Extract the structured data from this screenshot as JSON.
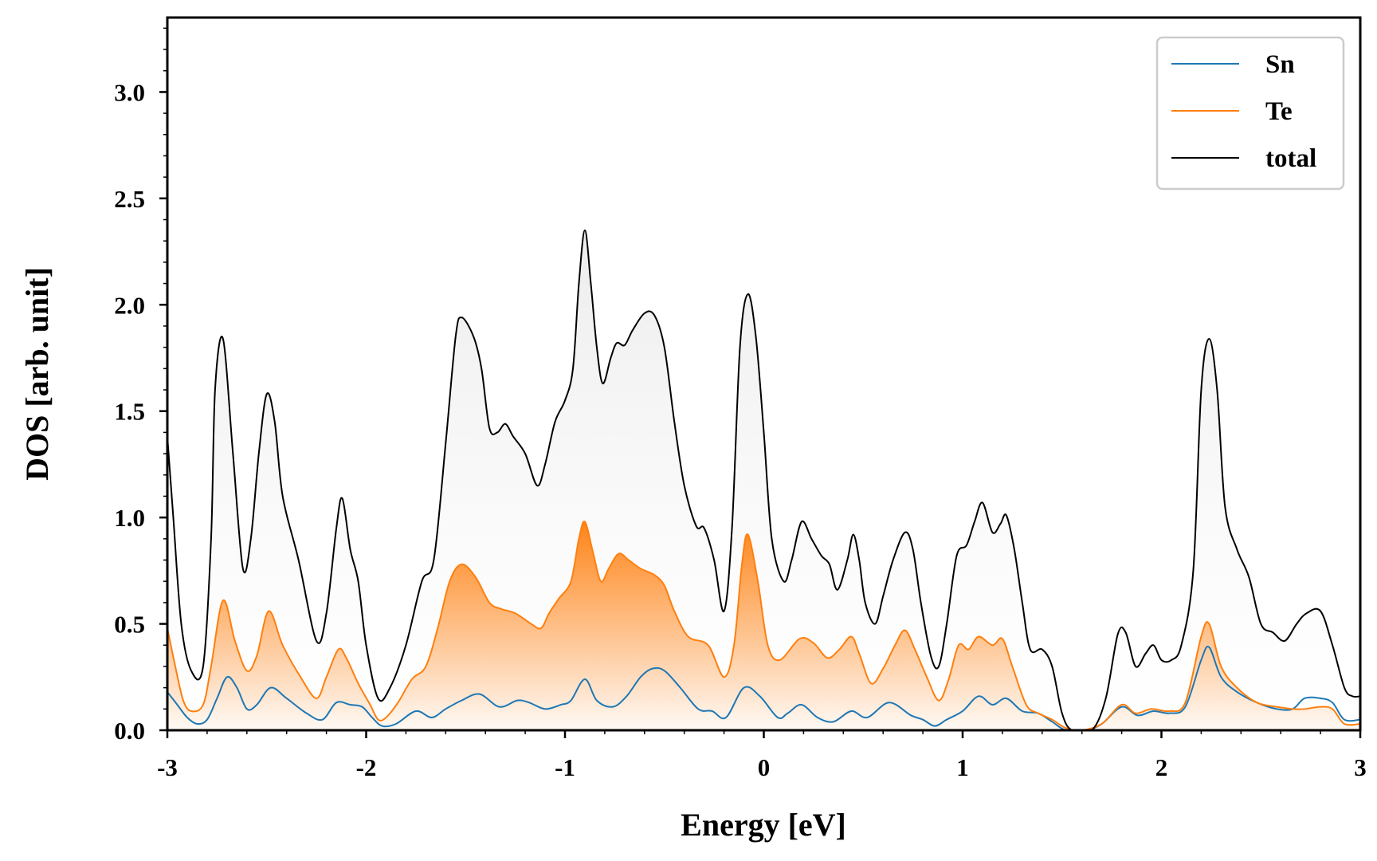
{
  "chart_data": {
    "type": "line",
    "title": "",
    "xlabel": "Energy [eV]",
    "ylabel": "DOS [arb. unit]",
    "xlim": [
      -3,
      3
    ],
    "ylim": [
      0,
      3.35
    ],
    "xticks": [
      -3,
      -2,
      -1,
      0,
      1,
      2,
      3
    ],
    "xtick_labels": [
      "-3",
      "-2",
      "-1",
      "0",
      "1",
      "2",
      "3"
    ],
    "yticks": [
      0,
      0.5,
      1,
      1.5,
      2,
      2.5,
      3
    ],
    "ytick_labels": [
      "0.0",
      "0.5",
      "1.0",
      "1.5",
      "2.0",
      "2.5",
      "3.0"
    ],
    "legend": {
      "position": "top-right"
    },
    "series": [
      {
        "name": "Sn",
        "color": "#1f77b4",
        "filled": false,
        "points": [
          [
            -3.0,
            0.18
          ],
          [
            -2.95,
            0.12
          ],
          [
            -2.9,
            0.06
          ],
          [
            -2.85,
            0.03
          ],
          [
            -2.8,
            0.05
          ],
          [
            -2.75,
            0.15
          ],
          [
            -2.7,
            0.25
          ],
          [
            -2.65,
            0.2
          ],
          [
            -2.6,
            0.1
          ],
          [
            -2.55,
            0.12
          ],
          [
            -2.48,
            0.2
          ],
          [
            -2.4,
            0.15
          ],
          [
            -2.3,
            0.08
          ],
          [
            -2.22,
            0.05
          ],
          [
            -2.15,
            0.13
          ],
          [
            -2.08,
            0.12
          ],
          [
            -2.02,
            0.11
          ],
          [
            -1.97,
            0.06
          ],
          [
            -1.92,
            0.02
          ],
          [
            -1.85,
            0.03
          ],
          [
            -1.75,
            0.09
          ],
          [
            -1.67,
            0.06
          ],
          [
            -1.6,
            0.1
          ],
          [
            -1.52,
            0.14
          ],
          [
            -1.43,
            0.17
          ],
          [
            -1.33,
            0.11
          ],
          [
            -1.24,
            0.14
          ],
          [
            -1.18,
            0.13
          ],
          [
            -1.1,
            0.1
          ],
          [
            -1.02,
            0.12
          ],
          [
            -0.97,
            0.14
          ],
          [
            -0.9,
            0.24
          ],
          [
            -0.84,
            0.14
          ],
          [
            -0.76,
            0.11
          ],
          [
            -0.69,
            0.16
          ],
          [
            -0.62,
            0.25
          ],
          [
            -0.56,
            0.29
          ],
          [
            -0.5,
            0.28
          ],
          [
            -0.42,
            0.2
          ],
          [
            -0.33,
            0.1
          ],
          [
            -0.26,
            0.09
          ],
          [
            -0.19,
            0.06
          ],
          [
            -0.1,
            0.2
          ],
          [
            -0.02,
            0.16
          ],
          [
            0.07,
            0.06
          ],
          [
            0.12,
            0.08
          ],
          [
            0.19,
            0.12
          ],
          [
            0.27,
            0.06
          ],
          [
            0.35,
            0.04
          ],
          [
            0.44,
            0.09
          ],
          [
            0.52,
            0.06
          ],
          [
            0.63,
            0.13
          ],
          [
            0.74,
            0.07
          ],
          [
            0.8,
            0.05
          ],
          [
            0.86,
            0.02
          ],
          [
            0.92,
            0.05
          ],
          [
            1.0,
            0.09
          ],
          [
            1.08,
            0.16
          ],
          [
            1.15,
            0.12
          ],
          [
            1.22,
            0.15
          ],
          [
            1.3,
            0.09
          ],
          [
            1.38,
            0.08
          ],
          [
            1.45,
            0.04
          ],
          [
            1.52,
            0.0
          ],
          [
            1.62,
            0.0
          ],
          [
            1.7,
            0.03
          ],
          [
            1.8,
            0.11
          ],
          [
            1.88,
            0.07
          ],
          [
            1.96,
            0.09
          ],
          [
            2.04,
            0.08
          ],
          [
            2.12,
            0.11
          ],
          [
            2.2,
            0.33
          ],
          [
            2.24,
            0.39
          ],
          [
            2.3,
            0.25
          ],
          [
            2.38,
            0.18
          ],
          [
            2.48,
            0.13
          ],
          [
            2.58,
            0.1
          ],
          [
            2.66,
            0.1
          ],
          [
            2.72,
            0.15
          ],
          [
            2.8,
            0.15
          ],
          [
            2.86,
            0.13
          ],
          [
            2.92,
            0.05
          ],
          [
            3.0,
            0.05
          ]
        ]
      },
      {
        "name": "Te",
        "color": "#ff7f0e",
        "filled": true,
        "points": [
          [
            -3.0,
            0.48
          ],
          [
            -2.96,
            0.3
          ],
          [
            -2.92,
            0.14
          ],
          [
            -2.88,
            0.09
          ],
          [
            -2.82,
            0.12
          ],
          [
            -2.78,
            0.3
          ],
          [
            -2.72,
            0.61
          ],
          [
            -2.66,
            0.42
          ],
          [
            -2.6,
            0.28
          ],
          [
            -2.55,
            0.35
          ],
          [
            -2.49,
            0.56
          ],
          [
            -2.42,
            0.4
          ],
          [
            -2.33,
            0.25
          ],
          [
            -2.25,
            0.15
          ],
          [
            -2.2,
            0.25
          ],
          [
            -2.14,
            0.38
          ],
          [
            -2.1,
            0.34
          ],
          [
            -2.04,
            0.22
          ],
          [
            -1.98,
            0.12
          ],
          [
            -1.94,
            0.05
          ],
          [
            -1.9,
            0.06
          ],
          [
            -1.84,
            0.13
          ],
          [
            -1.77,
            0.24
          ],
          [
            -1.7,
            0.3
          ],
          [
            -1.64,
            0.48
          ],
          [
            -1.58,
            0.7
          ],
          [
            -1.52,
            0.78
          ],
          [
            -1.45,
            0.72
          ],
          [
            -1.38,
            0.6
          ],
          [
            -1.32,
            0.57
          ],
          [
            -1.25,
            0.55
          ],
          [
            -1.17,
            0.5
          ],
          [
            -1.12,
            0.48
          ],
          [
            -1.08,
            0.55
          ],
          [
            -1.03,
            0.62
          ],
          [
            -0.97,
            0.7
          ],
          [
            -0.93,
            0.9
          ],
          [
            -0.9,
            0.98
          ],
          [
            -0.86,
            0.84
          ],
          [
            -0.82,
            0.7
          ],
          [
            -0.78,
            0.76
          ],
          [
            -0.73,
            0.83
          ],
          [
            -0.68,
            0.8
          ],
          [
            -0.62,
            0.76
          ],
          [
            -0.55,
            0.73
          ],
          [
            -0.5,
            0.68
          ],
          [
            -0.45,
            0.56
          ],
          [
            -0.38,
            0.44
          ],
          [
            -0.28,
            0.4
          ],
          [
            -0.2,
            0.25
          ],
          [
            -0.15,
            0.4
          ],
          [
            -0.11,
            0.78
          ],
          [
            -0.08,
            0.92
          ],
          [
            -0.03,
            0.7
          ],
          [
            0.02,
            0.4
          ],
          [
            0.08,
            0.33
          ],
          [
            0.18,
            0.43
          ],
          [
            0.25,
            0.41
          ],
          [
            0.32,
            0.34
          ],
          [
            0.38,
            0.38
          ],
          [
            0.44,
            0.44
          ],
          [
            0.48,
            0.36
          ],
          [
            0.54,
            0.22
          ],
          [
            0.6,
            0.29
          ],
          [
            0.66,
            0.4
          ],
          [
            0.71,
            0.47
          ],
          [
            0.76,
            0.38
          ],
          [
            0.82,
            0.25
          ],
          [
            0.88,
            0.14
          ],
          [
            0.93,
            0.24
          ],
          [
            0.98,
            0.4
          ],
          [
            1.03,
            0.38
          ],
          [
            1.08,
            0.44
          ],
          [
            1.15,
            0.4
          ],
          [
            1.2,
            0.43
          ],
          [
            1.25,
            0.3
          ],
          [
            1.32,
            0.12
          ],
          [
            1.38,
            0.08
          ],
          [
            1.45,
            0.05
          ],
          [
            1.52,
            0.01
          ],
          [
            1.6,
            0.0
          ],
          [
            1.7,
            0.03
          ],
          [
            1.8,
            0.12
          ],
          [
            1.87,
            0.08
          ],
          [
            1.95,
            0.1
          ],
          [
            2.04,
            0.09
          ],
          [
            2.12,
            0.13
          ],
          [
            2.2,
            0.44
          ],
          [
            2.24,
            0.5
          ],
          [
            2.3,
            0.3
          ],
          [
            2.38,
            0.2
          ],
          [
            2.48,
            0.13
          ],
          [
            2.58,
            0.11
          ],
          [
            2.66,
            0.1
          ],
          [
            2.72,
            0.1
          ],
          [
            2.8,
            0.11
          ],
          [
            2.86,
            0.1
          ],
          [
            2.92,
            0.03
          ],
          [
            3.0,
            0.03
          ]
        ]
      },
      {
        "name": "total",
        "color": "#000000",
        "filled": true,
        "points": [
          [
            -3.0,
            1.38
          ],
          [
            -2.97,
            1.0
          ],
          [
            -2.93,
            0.5
          ],
          [
            -2.88,
            0.28
          ],
          [
            -2.82,
            0.3
          ],
          [
            -2.78,
            0.9
          ],
          [
            -2.76,
            1.6
          ],
          [
            -2.72,
            1.84
          ],
          [
            -2.67,
            1.3
          ],
          [
            -2.62,
            0.76
          ],
          [
            -2.58,
            0.9
          ],
          [
            -2.54,
            1.3
          ],
          [
            -2.5,
            1.58
          ],
          [
            -2.46,
            1.45
          ],
          [
            -2.42,
            1.1
          ],
          [
            -2.34,
            0.8
          ],
          [
            -2.25,
            0.42
          ],
          [
            -2.2,
            0.55
          ],
          [
            -2.15,
            0.95
          ],
          [
            -2.12,
            1.09
          ],
          [
            -2.08,
            0.85
          ],
          [
            -2.04,
            0.7
          ],
          [
            -2.0,
            0.4
          ],
          [
            -1.94,
            0.15
          ],
          [
            -1.88,
            0.2
          ],
          [
            -1.8,
            0.4
          ],
          [
            -1.72,
            0.7
          ],
          [
            -1.66,
            0.8
          ],
          [
            -1.6,
            1.35
          ],
          [
            -1.55,
            1.85
          ],
          [
            -1.52,
            1.94
          ],
          [
            -1.46,
            1.85
          ],
          [
            -1.42,
            1.7
          ],
          [
            -1.38,
            1.42
          ],
          [
            -1.34,
            1.4
          ],
          [
            -1.3,
            1.44
          ],
          [
            -1.26,
            1.38
          ],
          [
            -1.2,
            1.3
          ],
          [
            -1.14,
            1.15
          ],
          [
            -1.1,
            1.25
          ],
          [
            -1.05,
            1.45
          ],
          [
            -1.0,
            1.55
          ],
          [
            -0.96,
            1.7
          ],
          [
            -0.93,
            2.1
          ],
          [
            -0.9,
            2.35
          ],
          [
            -0.87,
            2.1
          ],
          [
            -0.84,
            1.8
          ],
          [
            -0.81,
            1.63
          ],
          [
            -0.77,
            1.75
          ],
          [
            -0.74,
            1.82
          ],
          [
            -0.7,
            1.81
          ],
          [
            -0.66,
            1.88
          ],
          [
            -0.6,
            1.96
          ],
          [
            -0.55,
            1.95
          ],
          [
            -0.5,
            1.8
          ],
          [
            -0.45,
            1.45
          ],
          [
            -0.4,
            1.15
          ],
          [
            -0.34,
            0.96
          ],
          [
            -0.3,
            0.95
          ],
          [
            -0.25,
            0.8
          ],
          [
            -0.2,
            0.56
          ],
          [
            -0.16,
            0.95
          ],
          [
            -0.12,
            1.8
          ],
          [
            -0.08,
            2.05
          ],
          [
            -0.04,
            1.85
          ],
          [
            0.0,
            1.4
          ],
          [
            0.04,
            0.9
          ],
          [
            0.1,
            0.7
          ],
          [
            0.14,
            0.8
          ],
          [
            0.19,
            0.98
          ],
          [
            0.24,
            0.9
          ],
          [
            0.29,
            0.82
          ],
          [
            0.33,
            0.78
          ],
          [
            0.37,
            0.66
          ],
          [
            0.42,
            0.8
          ],
          [
            0.45,
            0.92
          ],
          [
            0.48,
            0.8
          ],
          [
            0.51,
            0.6
          ],
          [
            0.56,
            0.5
          ],
          [
            0.6,
            0.63
          ],
          [
            0.65,
            0.8
          ],
          [
            0.71,
            0.93
          ],
          [
            0.75,
            0.85
          ],
          [
            0.79,
            0.6
          ],
          [
            0.84,
            0.35
          ],
          [
            0.88,
            0.3
          ],
          [
            0.92,
            0.5
          ],
          [
            0.97,
            0.82
          ],
          [
            1.02,
            0.87
          ],
          [
            1.06,
            0.98
          ],
          [
            1.1,
            1.07
          ],
          [
            1.15,
            0.93
          ],
          [
            1.19,
            0.97
          ],
          [
            1.22,
            1.01
          ],
          [
            1.26,
            0.85
          ],
          [
            1.3,
            0.6
          ],
          [
            1.34,
            0.38
          ],
          [
            1.4,
            0.38
          ],
          [
            1.45,
            0.3
          ],
          [
            1.5,
            0.08
          ],
          [
            1.55,
            0.0
          ],
          [
            1.65,
            0.0
          ],
          [
            1.72,
            0.15
          ],
          [
            1.78,
            0.45
          ],
          [
            1.82,
            0.46
          ],
          [
            1.87,
            0.3
          ],
          [
            1.92,
            0.36
          ],
          [
            1.96,
            0.4
          ],
          [
            2.0,
            0.33
          ],
          [
            2.05,
            0.33
          ],
          [
            2.1,
            0.4
          ],
          [
            2.16,
            0.75
          ],
          [
            2.2,
            1.6
          ],
          [
            2.24,
            1.84
          ],
          [
            2.28,
            1.6
          ],
          [
            2.32,
            1.05
          ],
          [
            2.38,
            0.85
          ],
          [
            2.44,
            0.72
          ],
          [
            2.5,
            0.5
          ],
          [
            2.56,
            0.46
          ],
          [
            2.62,
            0.42
          ],
          [
            2.68,
            0.5
          ],
          [
            2.73,
            0.55
          ],
          [
            2.8,
            0.56
          ],
          [
            2.86,
            0.4
          ],
          [
            2.92,
            0.2
          ],
          [
            2.96,
            0.16
          ],
          [
            3.0,
            0.16
          ]
        ]
      }
    ]
  }
}
